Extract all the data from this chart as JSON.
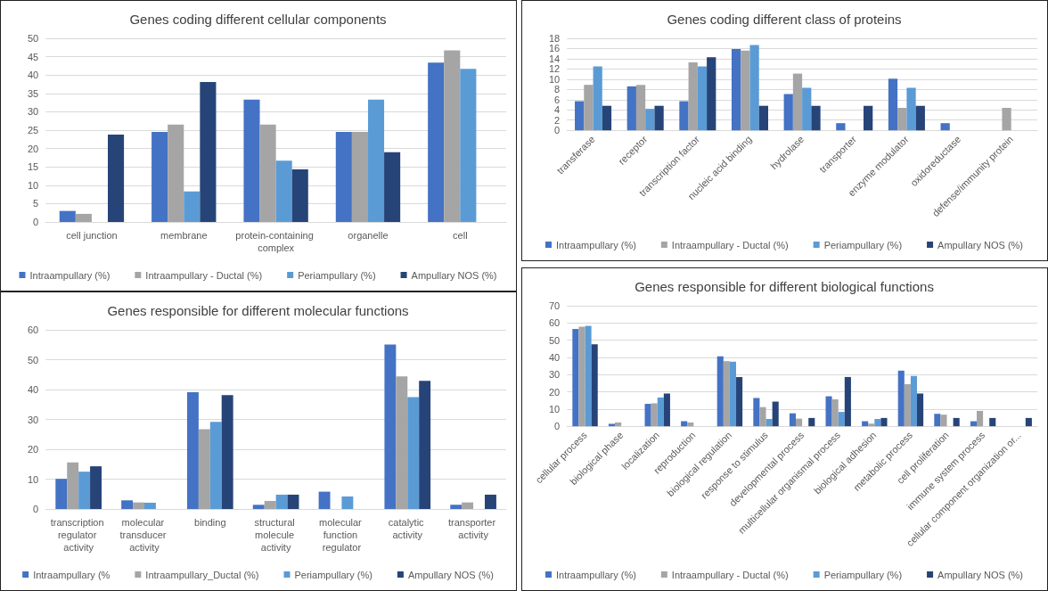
{
  "chart_data": [
    {
      "type": "bar",
      "title": "Genes coding different cellular components",
      "categories": [
        "cell junction",
        "membrane",
        "protein-containing complex",
        "organelle",
        "cell"
      ],
      "series": [
        {
          "name": "Intraampullary (%)",
          "color": "#4472c4",
          "values": [
            3,
            24.5,
            33.3,
            24.5,
            43.4
          ]
        },
        {
          "name": "Intraampullary - Ductal (%)",
          "color": "#a5a5a5",
          "values": [
            2.2,
            26.5,
            26.5,
            24.5,
            46.7
          ]
        },
        {
          "name": "Periampullary (%)",
          "color": "#5b9bd5",
          "values": [
            null,
            8.3,
            16.7,
            33.3,
            41.7
          ]
        },
        {
          "name": "Ampullary NOS (%)",
          "color": "#264478",
          "values": [
            23.8,
            38.1,
            14.3,
            19,
            null
          ]
        }
      ],
      "ylim": [
        0,
        50
      ],
      "yticks": [
        0,
        5,
        10,
        15,
        20,
        25,
        30,
        35,
        40,
        45,
        50
      ],
      "grid": "y",
      "legend": "bottom"
    },
    {
      "type": "bar",
      "title": "Genes coding different class of proteins",
      "categories": [
        "transferase",
        "receptor",
        "transcription factor",
        "nucleic acid binding",
        "hydrolase",
        "transporter",
        "enzyme modulator",
        "oxidoreductase",
        "defense/immunity protein"
      ],
      "series": [
        {
          "name": "Intraampullary (%)",
          "color": "#4472c4",
          "values": [
            5.7,
            8.6,
            5.7,
            15.9,
            7.1,
            1.4,
            10.1,
            1.4,
            null
          ]
        },
        {
          "name": "Intraampullary - Ductal (%)",
          "color": "#a5a5a5",
          "values": [
            8.9,
            8.9,
            13.3,
            15.6,
            11.1,
            null,
            4.4,
            null,
            4.4
          ]
        },
        {
          "name": "Periampullary (%)",
          "color": "#5b9bd5",
          "values": [
            12.5,
            4.2,
            12.5,
            16.7,
            8.3,
            null,
            8.3,
            null,
            null
          ]
        },
        {
          "name": "Ampullary NOS (%)",
          "color": "#264478",
          "values": [
            4.8,
            4.8,
            14.3,
            4.8,
            4.8,
            4.8,
            4.8,
            null,
            null
          ]
        }
      ],
      "ylim": [
        0,
        18
      ],
      "yticks": [
        0,
        2,
        4,
        6,
        8,
        10,
        12,
        14,
        16,
        18
      ],
      "grid": "y",
      "legend": "bottom"
    },
    {
      "type": "bar",
      "title": "Genes responsible for different molecular functions",
      "categories": [
        "transcription regulator activity",
        "molecular transducer activity",
        "binding",
        "structural molecule activity",
        "molecular function regulator",
        "catalytic activity",
        "transporter activity"
      ],
      "series": [
        {
          "name": "Intraampullary (%",
          "color": "#4472c4",
          "values": [
            10.1,
            2.9,
            39.1,
            1.4,
            5.8,
            55.1,
            1.4
          ]
        },
        {
          "name": "Intraampullary_Ductal (%)",
          "color": "#a5a5a5",
          "values": [
            15.6,
            2.2,
            26.7,
            2.7,
            null,
            44.4,
            2.2
          ]
        },
        {
          "name": "Periampullary (%)",
          "color": "#5b9bd5",
          "values": [
            12.5,
            2.1,
            29.2,
            4.8,
            4.2,
            37.5,
            null
          ]
        },
        {
          "name": "Ampullary NOS (%)",
          "color": "#264478",
          "values": [
            14.3,
            null,
            38.1,
            4.8,
            null,
            42.9,
            4.8
          ]
        }
      ],
      "ylim": [
        0,
        60
      ],
      "yticks": [
        0,
        10,
        20,
        30,
        40,
        50,
        60
      ],
      "grid": "y",
      "legend": "bottom"
    },
    {
      "type": "bar",
      "title": "Genes responsible for different biological functions",
      "categories": [
        "cellular process",
        "biological phase",
        "localization",
        "reproduction",
        "biological regulation",
        "response to stimulus",
        "developmental process",
        "multicellular organismal process",
        "biological adhesion",
        "metabolic process",
        "cell proliferation",
        "immune system process",
        "cellular component organization or..."
      ],
      "series": [
        {
          "name": "Intraampullary (%)",
          "color": "#4472c4",
          "values": [
            56.5,
            1.4,
            13,
            2.9,
            40.6,
            16.4,
            7.5,
            17.4,
            2.9,
            32.3,
            7.2,
            2.9,
            null
          ]
        },
        {
          "name": "Intraampullary - Ductal (%)",
          "color": "#a5a5a5",
          "values": [
            57.8,
            2.2,
            13.3,
            2.2,
            37.8,
            11.1,
            4.4,
            15.6,
            1.5,
            24.4,
            6.7,
            8.9,
            null
          ]
        },
        {
          "name": "Periampullary (%)",
          "color": "#5b9bd5",
          "values": [
            58.3,
            null,
            16.7,
            null,
            37.5,
            4.2,
            null,
            8.3,
            4.2,
            29.2,
            null,
            null,
            null
          ]
        },
        {
          "name": "Ampullary NOS (%)",
          "color": "#264478",
          "values": [
            47.6,
            null,
            19,
            null,
            28.6,
            14.3,
            4.8,
            28.6,
            4.8,
            19,
            4.8,
            4.8,
            4.8
          ]
        }
      ],
      "ylim": [
        0,
        70
      ],
      "yticks": [
        0,
        10,
        20,
        30,
        40,
        50,
        60,
        70
      ],
      "grid": "y",
      "legend": "bottom"
    }
  ]
}
